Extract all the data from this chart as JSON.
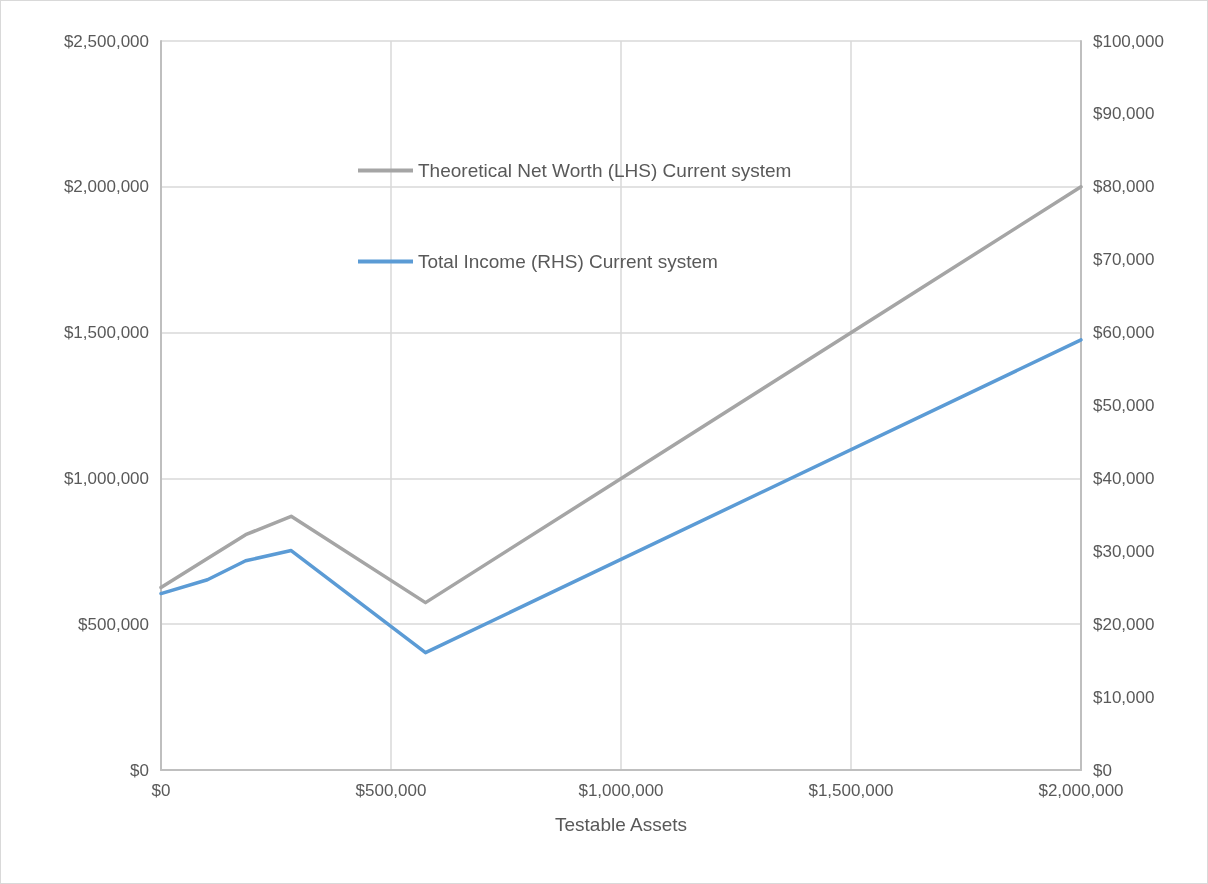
{
  "chart_data": {
    "type": "line",
    "xlabel": "Testable Assets",
    "x": [
      0,
      101000,
      184000,
      283000,
      575000,
      2000000
    ],
    "series": [
      {
        "name": "Theoretical Net Worth (LHS) Current system",
        "color": "#a5a5a5",
        "values": [
          626000,
          725000,
          807000,
          870000,
          574000,
          2000000
        ]
      },
      {
        "name": "Total Income (RHS) Current system",
        "color": "#5b9bd5",
        "axis": "y2",
        "values": [
          24200,
          26100,
          28700,
          30100,
          16100,
          59000
        ]
      }
    ],
    "xlim": [
      0,
      2000000
    ],
    "xticks": [
      {
        "value": 0,
        "label": "$0"
      },
      {
        "value": 500000,
        "label": "$500,000"
      },
      {
        "value": 1000000,
        "label": "$1,000,000"
      },
      {
        "value": 1500000,
        "label": "$1,500,000"
      },
      {
        "value": 2000000,
        "label": "$2,000,000"
      }
    ],
    "ylim": [
      0,
      2500000
    ],
    "yticks": [
      {
        "value": 0,
        "label": "$0"
      },
      {
        "value": 500000,
        "label": "$500,000"
      },
      {
        "value": 1000000,
        "label": "$1,000,000"
      },
      {
        "value": 1500000,
        "label": "$1,500,000"
      },
      {
        "value": 2000000,
        "label": "$2,000,000"
      },
      {
        "value": 2500000,
        "label": "$2,500,000"
      }
    ],
    "y2lim": [
      0,
      100000
    ],
    "y2ticks": [
      {
        "value": 0,
        "label": "$0"
      },
      {
        "value": 10000,
        "label": "$10,000"
      },
      {
        "value": 20000,
        "label": "$20,000"
      },
      {
        "value": 30000,
        "label": "$30,000"
      },
      {
        "value": 40000,
        "label": "$40,000"
      },
      {
        "value": 50000,
        "label": "$50,000"
      },
      {
        "value": 60000,
        "label": "$60,000"
      },
      {
        "value": 70000,
        "label": "$70,000"
      },
      {
        "value": 80000,
        "label": "$80,000"
      },
      {
        "value": 90000,
        "label": "$90,000"
      },
      {
        "value": 100000,
        "label": "$100,000"
      }
    ],
    "grid": true,
    "legend": "top",
    "marker": "none",
    "line_style": "solid"
  }
}
